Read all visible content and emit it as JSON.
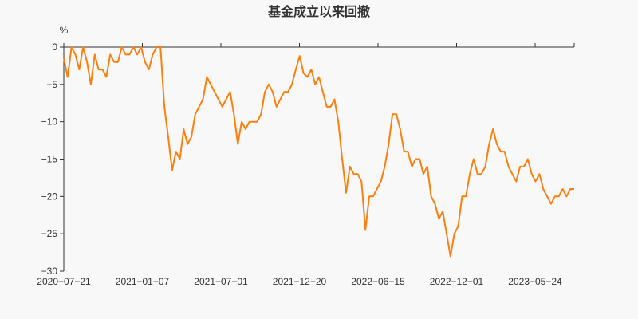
{
  "chart_data": {
    "type": "line",
    "title": "基金成立以来回撤",
    "ylabel": "%",
    "xlabel": "",
    "ylim": [
      -30,
      0
    ],
    "yticks": [
      0,
      -5,
      -10,
      -15,
      -20,
      -25,
      -30
    ],
    "xticks": [
      "2020-07-21",
      "2021-01-07",
      "2021-07-01",
      "2021-12-20",
      "2022-06-15",
      "2022-12-01",
      "2023-05-24"
    ],
    "grid": false,
    "color": "#ff7f0e",
    "series": [
      {
        "name": "回撤",
        "values": [
          -1.5,
          -4,
          0,
          -1,
          -3,
          0,
          -2,
          -5,
          -1,
          -3,
          -3,
          -4,
          -1,
          -2,
          -2,
          0,
          -1,
          -1,
          0,
          -1,
          0,
          -2,
          -3,
          -1,
          0,
          0,
          -8,
          -12,
          -16.5,
          -14,
          -15,
          -11,
          -13,
          -12,
          -9,
          -8,
          -7,
          -4,
          -5,
          -6,
          -7,
          -8,
          -7,
          -6,
          -9,
          -13,
          -10,
          -11,
          -10,
          -10,
          -10,
          -9,
          -6,
          -5,
          -6,
          -8,
          -7,
          -6,
          -6,
          -5,
          -3,
          -1.2,
          -3.5,
          -4,
          -3,
          -5,
          -4,
          -6,
          -8,
          -8,
          -7,
          -10,
          -15,
          -19.5,
          -16,
          -17,
          -17,
          -18,
          -24.5,
          -20,
          -20,
          -19,
          -18,
          -16,
          -13,
          -9,
          -9,
          -11,
          -14,
          -14,
          -16,
          -15,
          -15,
          -17,
          -16,
          -20,
          -21,
          -23,
          -22,
          -25,
          -28,
          -25,
          -24,
          -20,
          -20,
          -17,
          -15,
          -17,
          -17,
          -16,
          -13,
          -11,
          -13,
          -14,
          -14,
          -16,
          -17,
          -18,
          -16,
          -16,
          -15,
          -17,
          -18,
          -17,
          -19,
          -20,
          -21,
          -20,
          -20,
          -19,
          -20,
          -19,
          -19
        ]
      }
    ]
  }
}
